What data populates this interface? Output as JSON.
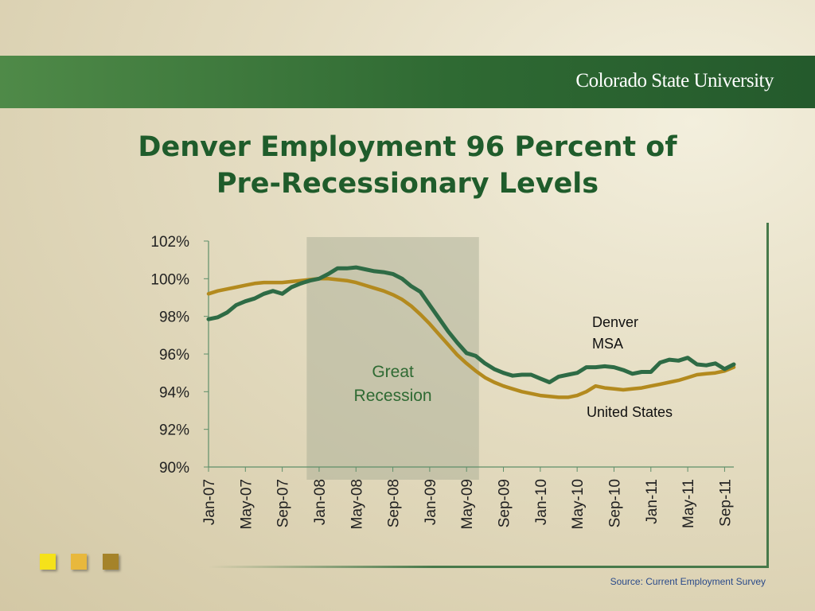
{
  "header": {
    "logo_text": "Colorado State University"
  },
  "slide": {
    "title_line1": "Denver Employment 96 Percent of",
    "title_line2": "Pre-Recessionary Levels",
    "source": "Source: Current Employment Survey"
  },
  "colors": {
    "banner_green": "#2f6a33",
    "title_green": "#1f5c2b",
    "denver_line": "#2e6b45",
    "us_line": "#b38a1e",
    "recession_shade": "#a9ad95",
    "square_1": "#f5e21a",
    "square_2": "#e8b83c",
    "square_3": "#a5832a"
  },
  "chart_data": {
    "type": "line",
    "x": [
      "Jan-07",
      "Feb-07",
      "Mar-07",
      "Apr-07",
      "May-07",
      "Jun-07",
      "Jul-07",
      "Aug-07",
      "Sep-07",
      "Oct-07",
      "Nov-07",
      "Dec-07",
      "Jan-08",
      "Feb-08",
      "Mar-08",
      "Apr-08",
      "May-08",
      "Jun-08",
      "Jul-08",
      "Aug-08",
      "Sep-08",
      "Oct-08",
      "Nov-08",
      "Dec-08",
      "Jan-09",
      "Feb-09",
      "Mar-09",
      "Apr-09",
      "May-09",
      "Jun-09",
      "Jul-09",
      "Aug-09",
      "Sep-09",
      "Oct-09",
      "Nov-09",
      "Dec-09",
      "Jan-10",
      "Feb-10",
      "Mar-10",
      "Apr-10",
      "May-10",
      "Jun-10",
      "Jul-10",
      "Aug-10",
      "Sep-10",
      "Oct-10",
      "Nov-10",
      "Dec-10",
      "Jan-11",
      "Feb-11",
      "Mar-11",
      "Apr-11",
      "May-11",
      "Jun-11",
      "Jul-11",
      "Aug-11",
      "Sep-11",
      "Oct-11"
    ],
    "tick_labels": [
      "Jan-07",
      "May-07",
      "Sep-07",
      "Jan-08",
      "May-08",
      "Sep-08",
      "Jan-09",
      "May-09",
      "Sep-09",
      "Jan-10",
      "May-10",
      "Sep-10",
      "Jan-11",
      "May-11",
      "Sep-11"
    ],
    "y_ticks": [
      "90%",
      "92%",
      "94%",
      "96%",
      "98%",
      "100%",
      "102%"
    ],
    "ylim": [
      90,
      102
    ],
    "series": [
      {
        "name": "Denver MSA",
        "values": [
          97.85,
          97.95,
          98.2,
          98.6,
          98.8,
          98.95,
          99.2,
          99.35,
          99.2,
          99.55,
          99.75,
          99.9,
          100.0,
          100.25,
          100.55,
          100.55,
          100.6,
          100.5,
          100.4,
          100.35,
          100.25,
          100.0,
          99.6,
          99.3,
          98.6,
          97.9,
          97.2,
          96.6,
          96.05,
          95.9,
          95.5,
          95.2,
          95.0,
          94.85,
          94.9,
          94.9,
          94.7,
          94.5,
          94.8,
          94.9,
          95.0,
          95.3,
          95.3,
          95.35,
          95.3,
          95.15,
          94.95,
          95.05,
          95.05,
          95.55,
          95.7,
          95.65,
          95.8,
          95.45,
          95.4,
          95.5,
          95.2,
          95.45
        ]
      },
      {
        "name": "United States",
        "values": [
          99.2,
          99.35,
          99.45,
          99.55,
          99.65,
          99.75,
          99.8,
          99.8,
          99.8,
          99.85,
          99.9,
          99.95,
          100.0,
          100.0,
          99.95,
          99.9,
          99.8,
          99.65,
          99.5,
          99.35,
          99.15,
          98.9,
          98.55,
          98.1,
          97.6,
          97.05,
          96.5,
          95.95,
          95.5,
          95.1,
          94.75,
          94.5,
          94.3,
          94.15,
          94.0,
          93.9,
          93.8,
          93.75,
          93.7,
          93.7,
          93.8,
          94.0,
          94.3,
          94.2,
          94.15,
          94.1,
          94.15,
          94.2,
          94.3,
          94.4,
          94.5,
          94.6,
          94.75,
          94.9,
          94.95,
          95.0,
          95.1,
          95.3
        ]
      }
    ],
    "shaded_region": {
      "label_line1": "Great",
      "label_line2": "Recession",
      "start": "Dec-07",
      "end": "Jun-09"
    },
    "annotations": [
      {
        "series": "Denver MSA",
        "line1": "Denver",
        "line2": "MSA"
      },
      {
        "series": "United States",
        "text": "United States"
      }
    ],
    "xlabel": "",
    "ylabel": "",
    "title": ""
  }
}
